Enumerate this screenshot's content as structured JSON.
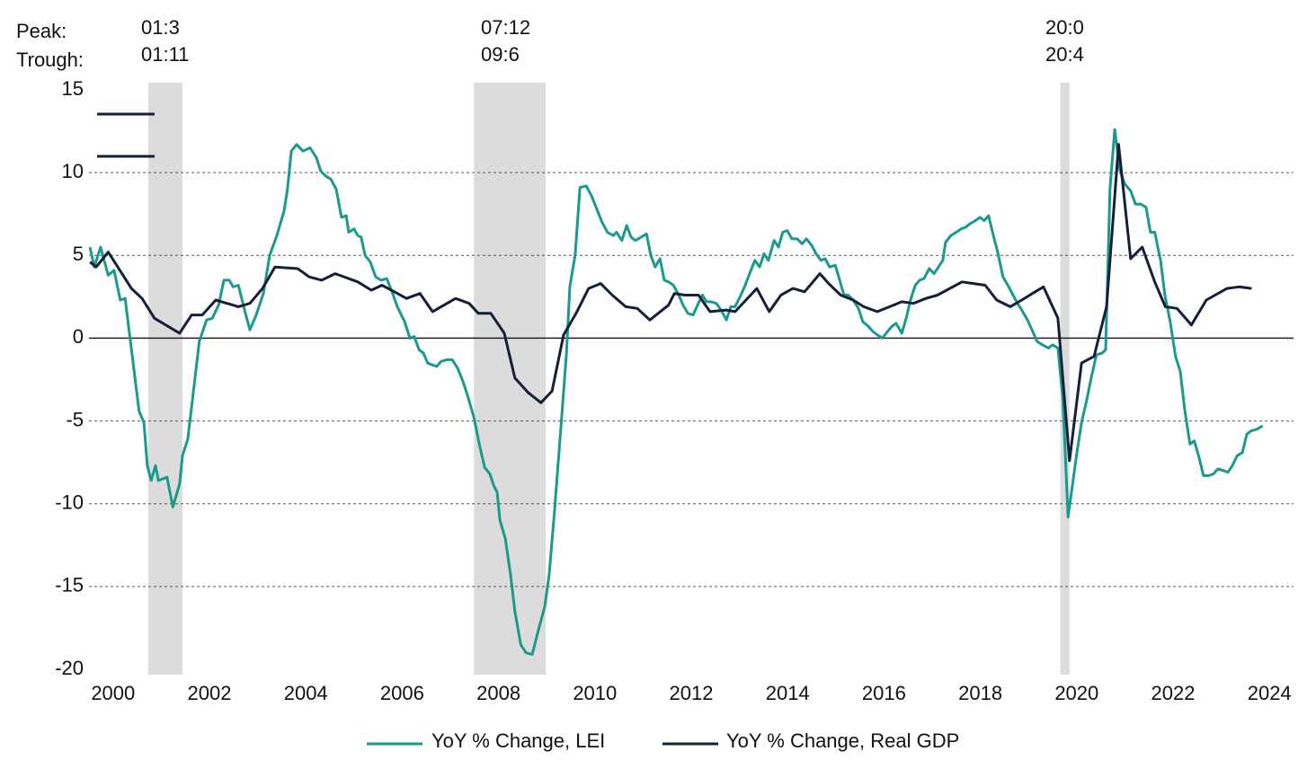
{
  "chart_data": {
    "type": "line",
    "annotations": {
      "peak": "Peak:",
      "trough": "Trough:"
    },
    "recessions": [
      {
        "peak": "01:3",
        "trough": "01:11",
        "start": 2000.73,
        "end": 2001.44
      },
      {
        "peak": "07:12",
        "trough": "09:6",
        "start": 2007.49,
        "end": 2008.98
      },
      {
        "peak": "20:0",
        "trough": "20:4",
        "start": 2019.66,
        "end": 2019.85
      }
    ],
    "xlim": [
      1999.5,
      2024.5
    ],
    "xticks": [
      2000,
      2002,
      2004,
      2006,
      2008,
      2010,
      2012,
      2014,
      2016,
      2018,
      2020,
      2022,
      2024
    ],
    "ylim": [
      -20,
      15
    ],
    "yticks": [
      -20,
      -15,
      -10,
      -5,
      0,
      5,
      10,
      15
    ],
    "grid": true,
    "series": [
      {
        "name": "YoY % Change, LEI",
        "color": "#1a9a8e",
        "x": [
          1999.52,
          1999.61,
          1999.74,
          1999.9,
          2000.02,
          2000.15,
          2000.25,
          2000.54,
          2000.64,
          2000.71,
          2000.79,
          2000.88,
          2000.94,
          2001.12,
          2001.24,
          2001.38,
          2001.44,
          2001.55,
          2001.66,
          2001.79,
          2001.94,
          2002.06,
          2002.19,
          2002.3,
          2002.41,
          2002.49,
          2002.6,
          2002.73,
          2002.84,
          2002.97,
          2003.12,
          2003.25,
          2003.4,
          2003.55,
          2003.62,
          2003.7,
          2003.81,
          2003.94,
          2004.09,
          2004.22,
          2004.31,
          2004.41,
          2004.52,
          2004.63,
          2004.74,
          2004.84,
          2004.89,
          2005.0,
          2005.08,
          2005.15,
          2005.23,
          2005.34,
          2005.45,
          2005.56,
          2005.68,
          2005.79,
          2005.9,
          2006.05,
          2006.16,
          2006.25,
          2006.35,
          2006.44,
          2006.53,
          2006.61,
          2006.72,
          2006.81,
          2006.93,
          2007.04,
          2007.15,
          2007.26,
          2007.35,
          2007.49,
          2007.6,
          2007.71,
          2007.82,
          2007.9,
          2007.97,
          2008.03,
          2008.14,
          2008.25,
          2008.34,
          2008.46,
          2008.57,
          2008.7,
          2008.83,
          2008.96,
          2009.05,
          2009.16,
          2009.29,
          2009.41,
          2009.48,
          2009.59,
          2009.69,
          2009.82,
          2009.93,
          2010.04,
          2010.15,
          2010.26,
          2010.38,
          2010.45,
          2010.56,
          2010.66,
          2010.75,
          2010.84,
          2010.96,
          2011.07,
          2011.16,
          2011.25,
          2011.35,
          2011.44,
          2011.53,
          2011.63,
          2011.74,
          2011.83,
          2011.93,
          2012.04,
          2012.13,
          2012.23,
          2012.32,
          2012.41,
          2012.52,
          2012.62,
          2012.73,
          2012.82,
          2012.91,
          2013.03,
          2013.12,
          2013.21,
          2013.32,
          2013.42,
          2013.51,
          2013.6,
          2013.72,
          2013.81,
          2013.9,
          2013.99,
          2014.09,
          2014.2,
          2014.3,
          2014.39,
          2014.5,
          2014.59,
          2014.69,
          2014.78,
          2014.87,
          2014.99,
          2015.08,
          2015.17,
          2015.26,
          2015.36,
          2015.47,
          2015.56,
          2015.68,
          2015.77,
          2015.86,
          2015.97,
          2016.07,
          2016.16,
          2016.25,
          2016.37,
          2016.46,
          2016.55,
          2016.65,
          2016.74,
          2016.83,
          2016.94,
          2017.04,
          2017.13,
          2017.22,
          2017.28,
          2017.39,
          2017.5,
          2017.6,
          2017.69,
          2017.78,
          2017.9,
          2017.99,
          2018.08,
          2018.17,
          2018.27,
          2018.36,
          2018.47,
          2018.57,
          2018.68,
          2018.77,
          2018.86,
          2018.98,
          2019.07,
          2019.18,
          2019.29,
          2019.41,
          2019.5,
          2019.61,
          2019.71,
          2019.82,
          2019.91,
          2020.0,
          2020.1,
          2020.21,
          2020.3,
          2020.41,
          2020.53,
          2020.6,
          2020.69,
          2020.79,
          2020.9,
          2021.0,
          2021.12,
          2021.22,
          2021.33,
          2021.44,
          2021.53,
          2021.62,
          2021.74,
          2021.83,
          2021.94,
          2022.05,
          2022.15,
          2022.24,
          2022.35,
          2022.44,
          2022.54,
          2022.63,
          2022.75,
          2022.84,
          2022.93,
          2023.05,
          2023.14,
          2023.23,
          2023.33,
          2023.44,
          2023.53,
          2023.62,
          2023.74,
          2023.86
        ],
        "values": [
          5.5,
          4.3,
          5.5,
          3.8,
          4.1,
          2.3,
          2.4,
          -4.4,
          -5.1,
          -7.7,
          -8.6,
          -7.7,
          -8.6,
          -8.4,
          -10.2,
          -8.8,
          -7.1,
          -6.1,
          -3.4,
          -0.2,
          1.1,
          1.2,
          2.0,
          3.5,
          3.5,
          3.1,
          3.2,
          1.7,
          0.5,
          1.4,
          2.7,
          5.0,
          6.2,
          7.7,
          9.0,
          11.3,
          11.7,
          11.3,
          11.5,
          10.9,
          10.1,
          9.8,
          9.6,
          9.0,
          7.3,
          7.4,
          6.4,
          6.6,
          6.2,
          6.1,
          5.0,
          4.6,
          3.7,
          3.5,
          3.6,
          2.8,
          1.9,
          1.0,
          0.0,
          0.1,
          -0.7,
          -0.9,
          -1.5,
          -1.6,
          -1.7,
          -1.4,
          -1.3,
          -1.3,
          -1.8,
          -2.6,
          -3.4,
          -4.8,
          -6.4,
          -7.8,
          -8.2,
          -8.9,
          -9.3,
          -11.0,
          -12.1,
          -14.3,
          -16.5,
          -18.5,
          -19.0,
          -19.1,
          -17.6,
          -16.2,
          -14.3,
          -10.5,
          -5.6,
          -0.9,
          3.1,
          5.0,
          9.1,
          9.2,
          8.6,
          7.8,
          7.0,
          6.4,
          6.2,
          6.4,
          5.9,
          6.8,
          6.1,
          5.9,
          6.1,
          6.3,
          5.0,
          4.3,
          4.8,
          3.5,
          3.4,
          3.2,
          2.6,
          2.0,
          1.5,
          1.4,
          2.0,
          2.6,
          2.2,
          2.2,
          2.1,
          1.7,
          1.1,
          1.9,
          1.9,
          2.6,
          3.2,
          3.9,
          4.7,
          4.3,
          5.1,
          4.7,
          5.9,
          5.5,
          6.4,
          6.5,
          6.0,
          6.0,
          5.7,
          6.0,
          5.6,
          5.1,
          4.7,
          4.8,
          4.3,
          4.4,
          3.5,
          2.6,
          2.6,
          2.3,
          1.8,
          1.0,
          0.7,
          0.4,
          0.2,
          0.0,
          0.4,
          0.7,
          0.9,
          0.3,
          1.2,
          2.3,
          3.2,
          3.5,
          3.6,
          4.2,
          3.9,
          4.3,
          4.7,
          5.8,
          6.2,
          6.4,
          6.6,
          6.7,
          6.9,
          7.1,
          7.3,
          7.1,
          7.4,
          6.2,
          5.2,
          3.7,
          3.2,
          2.6,
          2.1,
          1.7,
          1.1,
          0.5,
          -0.2,
          -0.4,
          -0.6,
          -0.4,
          -0.6,
          -3.6,
          -10.8,
          -8.9,
          -7.0,
          -5.1,
          -3.7,
          -2.4,
          -1.0,
          -0.9,
          -0.7,
          9.0,
          12.6,
          10.1,
          9.3,
          8.9,
          8.1,
          8.1,
          7.9,
          6.4,
          6.4,
          4.7,
          2.6,
          1.0,
          -1.1,
          -2.0,
          -4.3,
          -6.4,
          -6.2,
          -7.2,
          -8.3,
          -8.3,
          -8.2,
          -7.9,
          -8.0,
          -8.1,
          -7.7,
          -7.1,
          -6.9,
          -5.8,
          -5.6,
          -5.5,
          -5.3
        ]
      },
      {
        "name": "YoY % Change, Real GDP",
        "color": "#151f3a",
        "x": [
          1999.52,
          1999.65,
          1999.9,
          2000.38,
          2000.6,
          2000.86,
          2001.38,
          2001.63,
          2001.85,
          2002.13,
          2002.6,
          2002.84,
          2003.1,
          2003.36,
          2003.83,
          2004.07,
          2004.33,
          2004.61,
          2005.08,
          2005.36,
          2005.58,
          2005.84,
          2006.09,
          2006.37,
          2006.63,
          2007.11,
          2007.39,
          2007.58,
          2007.84,
          2008.12,
          2008.34,
          2008.62,
          2008.88,
          2009.11,
          2009.35,
          2009.61,
          2009.87,
          2010.12,
          2010.36,
          2010.64,
          2010.88,
          2011.14,
          2011.53,
          2011.65,
          2011.87,
          2012.15,
          2012.39,
          2012.73,
          2012.91,
          2013.36,
          2013.62,
          2013.86,
          2014.11,
          2014.35,
          2014.67,
          2014.85,
          2015.1,
          2015.36,
          2015.58,
          2015.86,
          2016.12,
          2016.37,
          2016.61,
          2016.87,
          2017.11,
          2017.62,
          2017.86,
          2018.1,
          2018.34,
          2018.62,
          2018.86,
          2019.08,
          2019.31,
          2019.61,
          2019.85,
          2020.1,
          2020.36,
          2020.62,
          2020.87,
          2021.12,
          2021.36,
          2021.62,
          2021.84,
          2022.08,
          2022.38,
          2022.69,
          2023.12,
          2023.37,
          2023.63
        ],
        "values": [
          4.6,
          4.3,
          5.2,
          3.0,
          2.4,
          1.2,
          0.3,
          1.4,
          1.4,
          2.3,
          1.9,
          2.1,
          3.0,
          4.3,
          4.2,
          3.7,
          3.5,
          3.9,
          3.4,
          2.9,
          3.2,
          2.8,
          2.4,
          2.7,
          1.6,
          2.4,
          2.1,
          1.5,
          1.5,
          0.3,
          -2.4,
          -3.3,
          -3.9,
          -3.2,
          0.2,
          1.5,
          3.0,
          3.3,
          2.6,
          1.9,
          1.8,
          1.1,
          2.0,
          2.7,
          2.6,
          2.6,
          1.6,
          1.7,
          1.6,
          3.0,
          1.6,
          2.6,
          3.0,
          2.8,
          3.9,
          3.3,
          2.6,
          2.3,
          1.9,
          1.6,
          1.9,
          2.2,
          2.1,
          2.4,
          2.6,
          3.4,
          3.3,
          3.2,
          2.3,
          1.9,
          2.3,
          2.7,
          3.1,
          1.2,
          -7.4,
          -1.5,
          -1.1,
          1.9,
          11.7,
          4.8,
          5.5,
          3.4,
          1.9,
          1.8,
          0.8,
          2.3,
          3.0,
          3.1,
          3.0
        ]
      }
    ]
  }
}
